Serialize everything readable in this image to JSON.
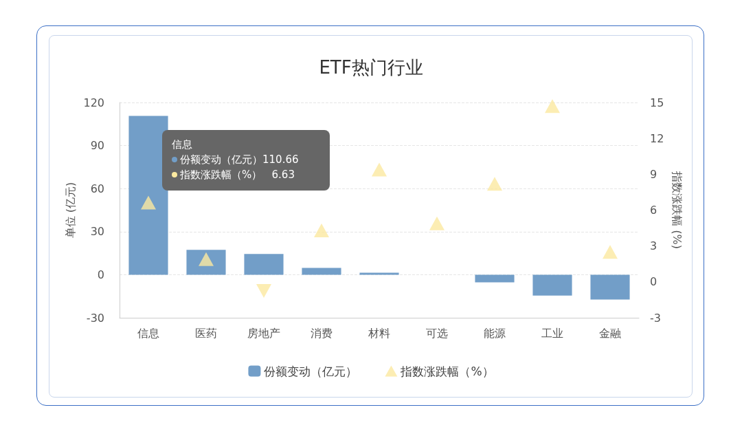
{
  "chart_data": {
    "type": "bar",
    "title": "ETF热门行业",
    "ylabel": "单位 (亿元)",
    "y2label": "指数涨跌幅 (%)",
    "categories": [
      "信息",
      "医药",
      "房地产",
      "消费",
      "材料",
      "可选",
      "能源",
      "工业",
      "金融"
    ],
    "series": [
      {
        "name": "份额变动（亿元）",
        "color": "#729ec8",
        "values": [
          110.66,
          17.3,
          14.5,
          4.8,
          1.4,
          0,
          -5.3,
          -14.5,
          -17.3
        ]
      },
      {
        "name": "指数涨跌幅（%）",
        "type": "scatter",
        "axis": "y2",
        "marker": "triangle",
        "color": "#fbe9a0",
        "values": [
          6.63,
          1.9,
          -0.75,
          4.3,
          9.4,
          4.9,
          8.2,
          14.7,
          2.5
        ]
      }
    ],
    "annotations": [
      "信息",
      "份额变动（亿元）110.66",
      "指数涨跌幅（%）   6.63"
    ],
    "ylim": [
      -30,
      120
    ],
    "yticks": [
      -30,
      0,
      30,
      60,
      90,
      120
    ],
    "y2lim": [
      -3,
      15
    ],
    "y2ticks": [
      -3,
      0,
      3,
      6,
      9,
      12,
      15
    ],
    "grid": "y",
    "legend": "bottom"
  }
}
